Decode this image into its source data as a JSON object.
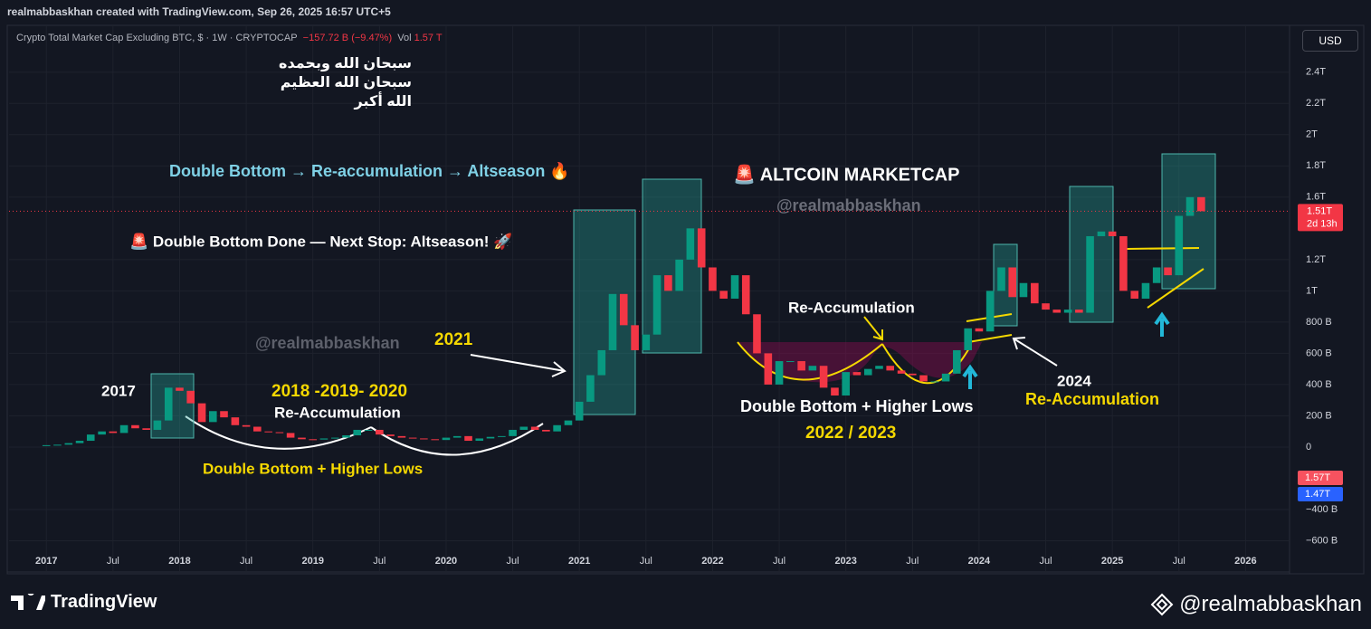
{
  "header": {
    "attribution": "realmabbaskhan created with TradingView.com, Sep 26, 2025 16:57 UTC+5",
    "symbol": "Crypto Total Market Cap Excluding BTC, $ · 1W · CRYPTOCAP",
    "change": "−157.72 B (−9.47%)",
    "vol_label": "Vol",
    "vol_value": "1.57 T",
    "currency": "USD"
  },
  "arabic_lines": [
    "سبحان الله وبحمده",
    "سبحان الله العظيم",
    "الله أكبر"
  ],
  "chart_data": {
    "type": "candlestick",
    "x": [
      2017,
      2017.083,
      2017.167,
      2017.25,
      2017.333,
      2017.417,
      2017.5,
      2017.583,
      2017.667,
      2017.75,
      2017.833,
      2017.917,
      2018,
      2018.083,
      2018.167,
      2018.25,
      2018.333,
      2018.417,
      2018.5,
      2018.583,
      2018.667,
      2018.75,
      2018.833,
      2018.917,
      2019,
      2019.083,
      2019.167,
      2019.25,
      2019.333,
      2019.417,
      2019.5,
      2019.583,
      2019.667,
      2019.75,
      2019.833,
      2019.917,
      2020,
      2020.083,
      2020.167,
      2020.25,
      2020.333,
      2020.417,
      2020.5,
      2020.583,
      2020.667,
      2020.75,
      2020.833,
      2020.917,
      2021,
      2021.083,
      2021.167,
      2021.25,
      2021.333,
      2021.417,
      2021.5,
      2021.583,
      2021.667,
      2021.75,
      2021.833,
      2021.917,
      2022,
      2022.083,
      2022.167,
      2022.25,
      2022.333,
      2022.417,
      2022.5,
      2022.583,
      2022.667,
      2022.75,
      2022.833,
      2022.917,
      2023,
      2023.083,
      2023.167,
      2023.25,
      2023.333,
      2023.417,
      2023.5,
      2023.583,
      2023.667,
      2023.75,
      2023.833,
      2023.917,
      2024,
      2024.083,
      2024.167,
      2024.25,
      2024.333,
      2024.417,
      2024.5,
      2024.583,
      2024.667,
      2024.75,
      2024.833,
      2024.917,
      2025,
      2025.083,
      2025.167,
      2025.25,
      2025.333,
      2025.417,
      2025.5,
      2025.583,
      2025.667
    ],
    "values": [
      12,
      15,
      25,
      40,
      80,
      100,
      90,
      140,
      120,
      110,
      170,
      380,
      360,
      280,
      160,
      230,
      190,
      140,
      130,
      100,
      95,
      90,
      60,
      50,
      48,
      55,
      60,
      75,
      110,
      110,
      80,
      70,
      60,
      55,
      50,
      45,
      60,
      70,
      40,
      55,
      65,
      70,
      110,
      130,
      110,
      100,
      140,
      170,
      290,
      460,
      620,
      980,
      780,
      620,
      720,
      1100,
      1000,
      1200,
      1400,
      1150,
      1000,
      950,
      1100,
      850,
      600,
      400,
      550,
      550,
      490,
      520,
      380,
      330,
      480,
      460,
      500,
      520,
      490,
      470,
      460,
      420,
      420,
      470,
      620,
      760,
      740,
      1000,
      1150,
      960,
      1050,
      920,
      880,
      860,
      880,
      860,
      1350,
      1380,
      1350,
      1000,
      950,
      1050,
      1150,
      1100,
      1480,
      1600,
      1510
    ],
    "colors": {
      "up": "#089981",
      "down": "#f23645"
    },
    "xlim": [
      2016.72,
      2026.33
    ],
    "ylim": [
      -800,
      2700
    ],
    "xticks": [
      2017,
      {
        "value": 2017.5,
        "label": "Jul"
      },
      2018,
      {
        "value": 2018.5,
        "label": "Jul"
      },
      2019,
      {
        "value": 2019.5,
        "label": "Jul"
      },
      2020,
      {
        "value": 2020.5,
        "label": "Jul"
      },
      2021,
      {
        "value": 2021.5,
        "label": "Jul"
      },
      2022,
      {
        "value": 2022.5,
        "label": "Jul"
      },
      2023,
      {
        "value": 2023.5,
        "label": "Jul"
      },
      2024,
      {
        "value": 2024.5,
        "label": "Jul"
      },
      2025,
      {
        "value": 2025.5,
        "label": "Jul"
      },
      2026
    ],
    "yticks": [
      {
        "value": -600,
        "label": "−600 B"
      },
      {
        "value": -400,
        "label": "−400 B"
      },
      0,
      {
        "value": 200,
        "label": "200 B"
      },
      {
        "value": 400,
        "label": "400 B"
      },
      {
        "value": 600,
        "label": "600 B"
      },
      {
        "value": 800,
        "label": "800 B"
      },
      {
        "value": 1000,
        "label": "1T"
      },
      {
        "value": 1200,
        "label": "1.2T"
      },
      {
        "value": 1600,
        "label": "1.6T"
      },
      {
        "value": 1800,
        "label": "1.8T"
      },
      {
        "value": 2000,
        "label": "2T"
      },
      {
        "value": 2200,
        "label": "2.2T"
      },
      {
        "value": 2400,
        "label": "2.4T"
      }
    ],
    "grid": true,
    "last_price_label": "1.51T",
    "countdown": "2d 13h",
    "volume_badge": "1.57T",
    "volume_ma_badge": "1.47T",
    "annotations": [
      "Double Bottom → Re-accumulation → Altseason 🔥",
      "🚨 ALTCOIN MARKETCAP",
      "@realmabbaskhan",
      "🚨 Double Bottom Done — Next Stop: Altseason! 🚀",
      "Re-Accumulation",
      "@realmabbaskhan",
      "2021",
      "2017",
      "2018 -2019- 2020",
      "Re-Accumulation",
      "Double Bottom + Higher Lows",
      "2024",
      "Re-Accumulation",
      "2022 / 2023",
      "Double Bottom + Higher Lows"
    ]
  },
  "footer": {
    "logo": "TradingView",
    "handle": "@realmabbaskhan"
  }
}
